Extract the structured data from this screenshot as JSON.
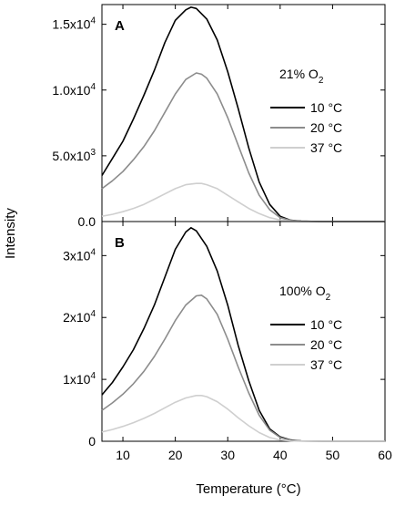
{
  "chart_data": [
    {
      "type": "line",
      "panel_label": "A",
      "annotation_text": "21% O",
      "annotation_sub": "2",
      "xlim": [
        6,
        60
      ],
      "ylim": [
        0,
        16500
      ],
      "x_ticks": [
        10,
        20,
        30,
        40,
        50,
        60
      ],
      "y_ticks": [
        {
          "value": 0,
          "label_base": "0.0",
          "label_exp": ""
        },
        {
          "value": 5000,
          "label_base": "5.0x10",
          "label_exp": "3"
        },
        {
          "value": 10000,
          "label_base": "1.0x10",
          "label_exp": "4"
        },
        {
          "value": 15000,
          "label_base": "1.5x10",
          "label_exp": "4"
        }
      ],
      "legend_position": "right",
      "series": [
        {
          "name": "10 °C",
          "color": "#000000",
          "x": [
            6,
            8,
            10,
            12,
            14,
            16,
            18,
            20,
            22,
            23,
            24,
            26,
            28,
            30,
            32,
            34,
            36,
            38,
            40,
            42,
            44,
            48,
            52,
            56,
            60
          ],
          "y": [
            3500,
            4800,
            6100,
            7800,
            9600,
            11500,
            13600,
            15300,
            16100,
            16300,
            16200,
            15400,
            13800,
            11400,
            8600,
            5600,
            3000,
            1300,
            400,
            100,
            30,
            0,
            0,
            0,
            0
          ]
        },
        {
          "name": "20 °C",
          "color": "#8c8c8c",
          "x": [
            6,
            8,
            10,
            12,
            14,
            16,
            18,
            20,
            22,
            24,
            25,
            26,
            28,
            30,
            32,
            34,
            36,
            38,
            40,
            42,
            44,
            48,
            52,
            56,
            60
          ],
          "y": [
            2500,
            3100,
            3800,
            4700,
            5700,
            6900,
            8300,
            9700,
            10800,
            11300,
            11200,
            10900,
            9700,
            7900,
            5800,
            3700,
            2000,
            900,
            300,
            80,
            20,
            0,
            0,
            0,
            0
          ]
        },
        {
          "name": "37 °C",
          "color": "#cfcfcf",
          "x": [
            6,
            8,
            10,
            12,
            14,
            16,
            18,
            20,
            22,
            24,
            25,
            26,
            28,
            30,
            32,
            34,
            36,
            38,
            40,
            42,
            44,
            48,
            52,
            56,
            60
          ],
          "y": [
            400,
            550,
            750,
            1000,
            1300,
            1700,
            2100,
            2500,
            2800,
            2900,
            2900,
            2800,
            2500,
            2000,
            1500,
            1000,
            600,
            300,
            120,
            40,
            10,
            0,
            0,
            0,
            0
          ]
        }
      ]
    },
    {
      "type": "line",
      "panel_label": "B",
      "annotation_text": "100% O",
      "annotation_sub": "2",
      "xlim": [
        6,
        60
      ],
      "ylim": [
        0,
        35500
      ],
      "x_ticks": [
        10,
        20,
        30,
        40,
        50,
        60
      ],
      "y_ticks": [
        {
          "value": 0,
          "label_base": "0",
          "label_exp": ""
        },
        {
          "value": 10000,
          "label_base": "1x10",
          "label_exp": "4"
        },
        {
          "value": 20000,
          "label_base": "2x10",
          "label_exp": "4"
        },
        {
          "value": 30000,
          "label_base": "3x10",
          "label_exp": "4"
        }
      ],
      "legend_position": "right",
      "series": [
        {
          "name": "10 °C",
          "color": "#000000",
          "x": [
            6,
            8,
            10,
            12,
            14,
            16,
            18,
            20,
            22,
            23,
            24,
            26,
            28,
            30,
            32,
            34,
            36,
            38,
            40,
            42,
            44,
            48,
            52,
            56,
            60
          ],
          "y": [
            7500,
            9500,
            12000,
            14800,
            18200,
            22000,
            26500,
            31000,
            33800,
            34500,
            34000,
            31500,
            27500,
            22000,
            15500,
            9800,
            5000,
            2000,
            700,
            200,
            50,
            0,
            0,
            0,
            0
          ]
        },
        {
          "name": "20 °C",
          "color": "#8c8c8c",
          "x": [
            6,
            8,
            10,
            12,
            14,
            16,
            18,
            20,
            22,
            24,
            25,
            26,
            28,
            30,
            32,
            34,
            36,
            38,
            40,
            42,
            44,
            48,
            52,
            56,
            60
          ],
          "y": [
            5000,
            6200,
            7600,
            9300,
            11300,
            13700,
            16500,
            19500,
            22000,
            23500,
            23600,
            23000,
            20500,
            16500,
            12000,
            7800,
            4200,
            1800,
            600,
            150,
            40,
            0,
            0,
            0,
            0
          ]
        },
        {
          "name": "37 °C",
          "color": "#cfcfcf",
          "x": [
            6,
            8,
            10,
            12,
            14,
            16,
            18,
            20,
            22,
            24,
            25,
            26,
            28,
            30,
            32,
            34,
            36,
            38,
            40,
            42,
            44,
            48,
            52,
            56,
            60
          ],
          "y": [
            1500,
            1900,
            2400,
            3000,
            3700,
            4500,
            5400,
            6300,
            7000,
            7400,
            7400,
            7200,
            6400,
            5200,
            3800,
            2500,
            1400,
            600,
            200,
            60,
            20,
            0,
            0,
            0,
            0
          ]
        }
      ]
    }
  ],
  "x_axis_title": "Temperature (°C)",
  "y_axis_title": "Intensity"
}
